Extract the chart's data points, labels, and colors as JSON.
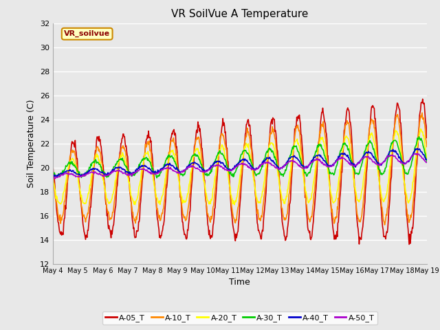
{
  "title": "VR SoilVue A Temperature",
  "ylabel": "Soil Temperature (C)",
  "xlabel": "Time",
  "watermark": "VR_soilvue",
  "ylim": [
    12,
    32
  ],
  "yticks": [
    12,
    14,
    16,
    18,
    20,
    22,
    24,
    26,
    28,
    30,
    32
  ],
  "n_days": 15,
  "xtick_labels": [
    "May 4",
    "May 5",
    "May 6",
    "May 7",
    "May 8",
    "May 9",
    "May 10",
    "May 11",
    "May 12",
    "May 13",
    "May 14",
    "May 15",
    "May 16",
    "May 17",
    "May 18",
    "May 19"
  ],
  "series": {
    "A-05_T": {
      "color": "#cc0000",
      "linewidth": 1.2
    },
    "A-10_T": {
      "color": "#ff8800",
      "linewidth": 1.2
    },
    "A-20_T": {
      "color": "#ffff00",
      "linewidth": 1.2
    },
    "A-30_T": {
      "color": "#00cc00",
      "linewidth": 1.2
    },
    "A-40_T": {
      "color": "#0000cc",
      "linewidth": 1.2
    },
    "A-50_T": {
      "color": "#aa00cc",
      "linewidth": 1.2
    }
  },
  "bg_color": "#e8e8e8",
  "plot_bg_color": "#e8e8e8",
  "grid_color": "#ffffff",
  "title_fontsize": 11,
  "axis_fontsize": 9,
  "tick_fontsize": 8
}
